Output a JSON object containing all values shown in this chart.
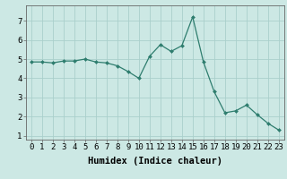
{
  "x": [
    0,
    1,
    2,
    3,
    4,
    5,
    6,
    7,
    8,
    9,
    10,
    11,
    12,
    13,
    14,
    15,
    16,
    17,
    18,
    19,
    20,
    21,
    22,
    23
  ],
  "y": [
    4.85,
    4.85,
    4.8,
    4.9,
    4.9,
    5.0,
    4.85,
    4.8,
    4.65,
    4.35,
    4.0,
    5.15,
    5.75,
    5.4,
    5.7,
    7.2,
    4.85,
    3.3,
    2.2,
    2.3,
    2.6,
    2.1,
    1.65,
    1.3
  ],
  "line_color": "#2e7d6e",
  "marker": "D",
  "marker_size": 2.0,
  "bg_color": "#cce8e4",
  "grid_color": "#aacfcb",
  "xlabel": "Humidex (Indice chaleur)",
  "xlabel_fontsize": 7.5,
  "tick_fontsize": 6.5,
  "xlim": [
    -0.5,
    23.5
  ],
  "ylim": [
    0.8,
    7.8
  ],
  "yticks": [
    1,
    2,
    3,
    4,
    5,
    6,
    7
  ],
  "xticks": [
    0,
    1,
    2,
    3,
    4,
    5,
    6,
    7,
    8,
    9,
    10,
    11,
    12,
    13,
    14,
    15,
    16,
    17,
    18,
    19,
    20,
    21,
    22,
    23
  ]
}
